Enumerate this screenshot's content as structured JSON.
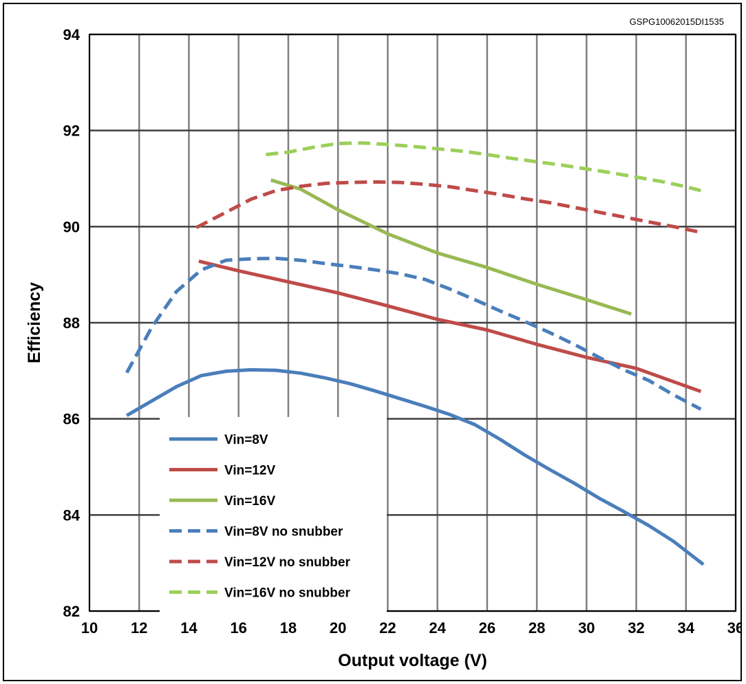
{
  "figure_code": "GSPG10062015DI1535",
  "chart_data": {
    "type": "line",
    "xlabel": "Output voltage (V)",
    "ylabel": "Efficiency",
    "xlim": [
      10,
      36
    ],
    "ylim": [
      82,
      94
    ],
    "xticks": [
      10,
      12,
      14,
      16,
      18,
      20,
      22,
      24,
      26,
      28,
      30,
      32,
      34,
      36
    ],
    "yticks": [
      82,
      84,
      86,
      88,
      90,
      92,
      94
    ],
    "grid": true,
    "legend_position": "bottom-left",
    "series": [
      {
        "name": "Vin=8V",
        "color": "#4a7ebb",
        "dash": "solid",
        "points": [
          [
            11.5,
            86.07
          ],
          [
            12.5,
            86.37
          ],
          [
            13.5,
            86.67
          ],
          [
            14.5,
            86.9
          ],
          [
            15.5,
            86.99
          ],
          [
            16.5,
            87.02
          ],
          [
            17.5,
            87.01
          ],
          [
            18.5,
            86.95
          ],
          [
            19.5,
            86.85
          ],
          [
            20.5,
            86.73
          ],
          [
            21.5,
            86.58
          ],
          [
            22.5,
            86.42
          ],
          [
            23.5,
            86.26
          ],
          [
            24.5,
            86.09
          ],
          [
            25.5,
            85.88
          ],
          [
            26.5,
            85.58
          ],
          [
            27.5,
            85.25
          ],
          [
            28.5,
            84.95
          ],
          [
            29.5,
            84.66
          ],
          [
            30.5,
            84.35
          ],
          [
            31.5,
            84.07
          ],
          [
            32.5,
            83.78
          ],
          [
            33.5,
            83.45
          ],
          [
            34.7,
            82.97
          ]
        ]
      },
      {
        "name": "Vin=12V",
        "color": "#be4b48",
        "dash": "solid",
        "points": [
          [
            14.4,
            89.28
          ],
          [
            16,
            89.08
          ],
          [
            18,
            88.85
          ],
          [
            20,
            88.62
          ],
          [
            22,
            88.35
          ],
          [
            24,
            88.07
          ],
          [
            26,
            87.85
          ],
          [
            28,
            87.55
          ],
          [
            30,
            87.28
          ],
          [
            32,
            87.05
          ],
          [
            34.6,
            86.57
          ]
        ]
      },
      {
        "name": "Vin=16V",
        "color": "#98b954",
        "dash": "solid",
        "points": [
          [
            17.3,
            90.97
          ],
          [
            18.5,
            90.78
          ],
          [
            20,
            90.35
          ],
          [
            22,
            89.85
          ],
          [
            24,
            89.45
          ],
          [
            26,
            89.15
          ],
          [
            28,
            88.8
          ],
          [
            30,
            88.48
          ],
          [
            31.8,
            88.18
          ]
        ]
      },
      {
        "name": "Vin=8V no snubber",
        "color": "#4a7ebb",
        "dash": "dashed",
        "points": [
          [
            11.5,
            86.96
          ],
          [
            12.5,
            87.9
          ],
          [
            13.5,
            88.65
          ],
          [
            14.5,
            89.1
          ],
          [
            15.5,
            89.3
          ],
          [
            16.5,
            89.33
          ],
          [
            17.5,
            89.34
          ],
          [
            18.5,
            89.3
          ],
          [
            19.5,
            89.23
          ],
          [
            20.5,
            89.17
          ],
          [
            21.5,
            89.1
          ],
          [
            22.5,
            89.02
          ],
          [
            23.5,
            88.9
          ],
          [
            24.5,
            88.7
          ],
          [
            25.5,
            88.48
          ],
          [
            26.5,
            88.25
          ],
          [
            27.5,
            88.03
          ],
          [
            28.5,
            87.8
          ],
          [
            29.5,
            87.55
          ],
          [
            30.5,
            87.28
          ],
          [
            31.5,
            87.02
          ],
          [
            32.5,
            86.8
          ],
          [
            33.5,
            86.5
          ],
          [
            34.6,
            86.2
          ]
        ]
      },
      {
        "name": "Vin=12V no snubber",
        "color": "#be4b48",
        "dash": "dashed",
        "points": [
          [
            14.3,
            89.98
          ],
          [
            15.5,
            90.3
          ],
          [
            16.5,
            90.57
          ],
          [
            17.5,
            90.75
          ],
          [
            18.5,
            90.84
          ],
          [
            19.5,
            90.9
          ],
          [
            20.5,
            90.92
          ],
          [
            21.5,
            90.93
          ],
          [
            22.5,
            90.92
          ],
          [
            23.5,
            90.88
          ],
          [
            24.5,
            90.83
          ],
          [
            25.5,
            90.75
          ],
          [
            26.5,
            90.67
          ],
          [
            27.5,
            90.58
          ],
          [
            28.5,
            90.5
          ],
          [
            29.5,
            90.4
          ],
          [
            30.5,
            90.3
          ],
          [
            31.5,
            90.2
          ],
          [
            32.5,
            90.1
          ],
          [
            33.5,
            90
          ],
          [
            34.6,
            89.88
          ]
        ]
      },
      {
        "name": "Vin=16V no snubber",
        "color": "#9ccf5a",
        "dash": "dashed",
        "points": [
          [
            17.1,
            91.5
          ],
          [
            18,
            91.55
          ],
          [
            19,
            91.65
          ],
          [
            20,
            91.73
          ],
          [
            21,
            91.74
          ],
          [
            22,
            91.71
          ],
          [
            23,
            91.67
          ],
          [
            24,
            91.62
          ],
          [
            25,
            91.57
          ],
          [
            26,
            91.5
          ],
          [
            27,
            91.42
          ],
          [
            28,
            91.35
          ],
          [
            29,
            91.28
          ],
          [
            30,
            91.2
          ],
          [
            31,
            91.12
          ],
          [
            32,
            91.03
          ],
          [
            33,
            90.94
          ],
          [
            34,
            90.83
          ],
          [
            34.6,
            90.75
          ]
        ]
      }
    ]
  }
}
